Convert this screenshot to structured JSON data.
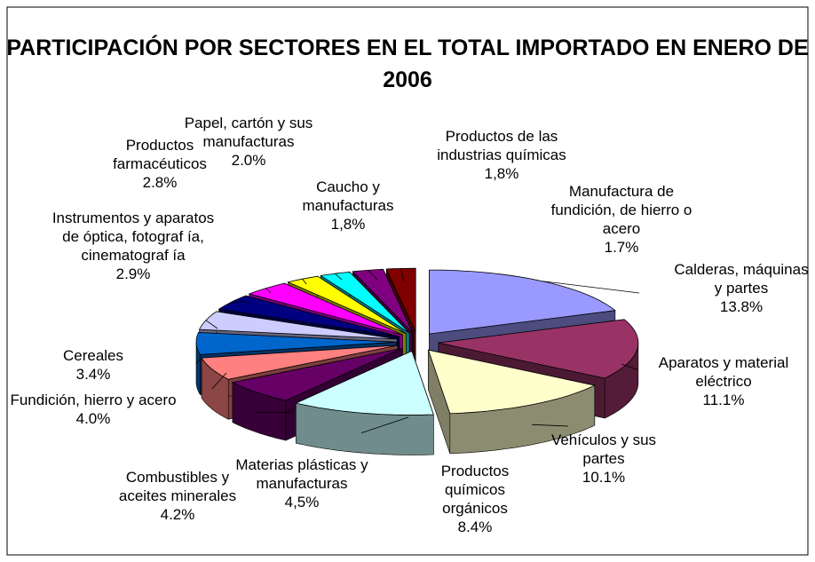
{
  "chart_data": {
    "type": "pie",
    "title": "PARTICIPACIÓN POR SECTORES EN EL TOTAL IMPORTADO EN ENERO DE 2006",
    "categories": [
      "Calderas, máquinas y partes",
      "Aparatos y material eléctrico",
      "Vehículos y sus partes",
      "Productos químicos orgánicos",
      "Materias plásticas y manufacturas",
      "Combustibles y aceites minerales",
      "Fundición, hierro y acero",
      "Cereales",
      "Instrumentos y aparatos de óptica, fotograf ía, cinematograf ía",
      "Productos farmacéuticos",
      "Papel, cartón y sus manufacturas",
      "Caucho y manufacturas",
      "Productos de las industrias químicas",
      "Manufactura de fundición, de hierro o acero"
    ],
    "values": [
      13.8,
      11.1,
      10.1,
      8.4,
      4.5,
      4.2,
      4.0,
      3.4,
      2.9,
      2.8,
      2.0,
      1.8,
      1.8,
      1.7
    ],
    "value_labels": [
      "13.8%",
      "11.1%",
      "10.1%",
      "8.4%",
      "4,5%",
      "4.2%",
      "4.0%",
      "3.4%",
      "2.9%",
      "2.8%",
      "2.0%",
      "1,8%",
      "1,8%",
      "1.7%"
    ],
    "colors": [
      "#9999ff",
      "#993366",
      "#ffffcc",
      "#ccffff",
      "#660066",
      "#ff8080",
      "#0066cc",
      "#ccccff",
      "#000080",
      "#ff00ff",
      "#ffff00",
      "#00ffff",
      "#800080",
      "#800000"
    ]
  }
}
